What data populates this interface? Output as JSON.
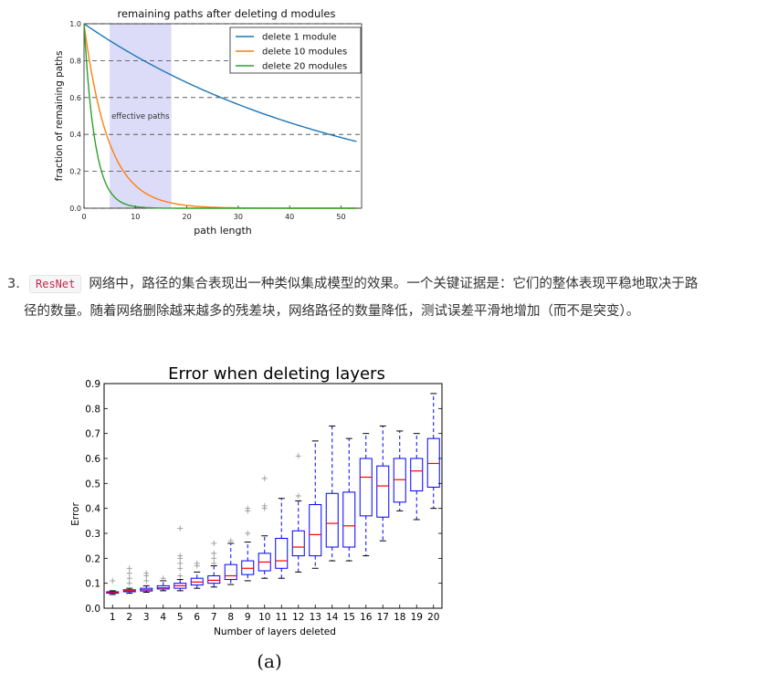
{
  "chart_data": [
    {
      "type": "line",
      "title": "remaining paths after deleting d modules",
      "xlabel": "path length",
      "ylabel": "fraction of remaining paths",
      "xlim": [
        0,
        54
      ],
      "ylim": [
        0,
        1.0
      ],
      "xticks": [
        "0",
        "10",
        "20",
        "30",
        "40",
        "50"
      ],
      "yticks": [
        "0.0",
        "0.2",
        "0.4",
        "0.6",
        "0.8",
        "1.0"
      ],
      "grid": "horizontal dashed",
      "legend_position": "top-right",
      "annotation": "effective paths",
      "shaded_region": [
        5,
        17
      ],
      "series": [
        {
          "name": "delete 1 module",
          "color": "#1f77b4",
          "decay": 0.981,
          "x_end": 53
        },
        {
          "name": "delete 10 modules",
          "color": "#ff7f0e",
          "decay": 0.811,
          "x_end": 53
        },
        {
          "name": "delete 20 modules",
          "color": "#2ca02c",
          "decay": 0.623,
          "x_end": 53
        }
      ]
    },
    {
      "type": "box",
      "title": "Error when deleting layers",
      "xlabel": "Number of layers deleted",
      "ylabel": "Error",
      "ylim": [
        0,
        0.9
      ],
      "yticks": [
        "0.0",
        "0.1",
        "0.2",
        "0.3",
        "0.4",
        "0.5",
        "0.6",
        "0.7",
        "0.8",
        "0.9"
      ],
      "categories": [
        "1",
        "2",
        "3",
        "4",
        "5",
        "6",
        "7",
        "8",
        "9",
        "10",
        "11",
        "12",
        "13",
        "14",
        "15",
        "16",
        "17",
        "18",
        "19",
        "20"
      ],
      "colors": {
        "box": "#0000ff",
        "median": "#ff0000",
        "outlier": "#999999"
      },
      "boxes": [
        {
          "min": 0.055,
          "q1": 0.06,
          "median": 0.063,
          "q3": 0.066,
          "max": 0.07,
          "outliers": [
            0.11
          ]
        },
        {
          "min": 0.06,
          "q1": 0.066,
          "median": 0.07,
          "q3": 0.074,
          "max": 0.08,
          "outliers": [
            0.1,
            0.12,
            0.14,
            0.16
          ]
        },
        {
          "min": 0.064,
          "q1": 0.069,
          "median": 0.074,
          "q3": 0.08,
          "max": 0.09,
          "outliers": [
            0.11,
            0.13,
            0.14
          ]
        },
        {
          "min": 0.07,
          "q1": 0.077,
          "median": 0.082,
          "q3": 0.09,
          "max": 0.11,
          "outliers": [
            0.12
          ]
        },
        {
          "min": 0.07,
          "q1": 0.08,
          "median": 0.09,
          "q3": 0.1,
          "max": 0.115,
          "outliers": [
            0.13,
            0.16,
            0.18,
            0.2,
            0.21,
            0.32
          ]
        },
        {
          "min": 0.08,
          "q1": 0.093,
          "median": 0.105,
          "q3": 0.12,
          "max": 0.145,
          "outliers": [
            0.17,
            0.18
          ]
        },
        {
          "min": 0.085,
          "q1": 0.1,
          "median": 0.112,
          "q3": 0.13,
          "max": 0.17,
          "outliers": [
            0.18,
            0.2,
            0.22,
            0.26
          ]
        },
        {
          "min": 0.095,
          "q1": 0.115,
          "median": 0.13,
          "q3": 0.175,
          "max": 0.26,
          "outliers": [
            0.27
          ]
        },
        {
          "min": 0.11,
          "q1": 0.135,
          "median": 0.16,
          "q3": 0.19,
          "max": 0.265,
          "outliers": [
            0.3,
            0.39,
            0.4
          ]
        },
        {
          "min": 0.12,
          "q1": 0.15,
          "median": 0.185,
          "q3": 0.22,
          "max": 0.29,
          "outliers": [
            0.4,
            0.41,
            0.52
          ]
        },
        {
          "min": 0.12,
          "q1": 0.16,
          "median": 0.19,
          "q3": 0.28,
          "max": 0.44,
          "outliers": []
        },
        {
          "min": 0.145,
          "q1": 0.21,
          "median": 0.245,
          "q3": 0.31,
          "max": 0.43,
          "outliers": [
            0.45,
            0.61
          ]
        },
        {
          "min": 0.16,
          "q1": 0.21,
          "median": 0.295,
          "q3": 0.415,
          "max": 0.67,
          "outliers": []
        },
        {
          "min": 0.19,
          "q1": 0.245,
          "median": 0.34,
          "q3": 0.46,
          "max": 0.73,
          "outliers": []
        },
        {
          "min": 0.19,
          "q1": 0.245,
          "median": 0.33,
          "q3": 0.465,
          "max": 0.68,
          "outliers": []
        },
        {
          "min": 0.21,
          "q1": 0.37,
          "median": 0.525,
          "q3": 0.6,
          "max": 0.7,
          "outliers": []
        },
        {
          "min": 0.27,
          "q1": 0.365,
          "median": 0.49,
          "q3": 0.57,
          "max": 0.73,
          "outliers": []
        },
        {
          "min": 0.39,
          "q1": 0.425,
          "median": 0.515,
          "q3": 0.6,
          "max": 0.71,
          "outliers": []
        },
        {
          "min": 0.355,
          "q1": 0.47,
          "median": 0.55,
          "q3": 0.6,
          "max": 0.7,
          "outliers": []
        },
        {
          "min": 0.4,
          "q1": 0.485,
          "median": 0.58,
          "q3": 0.68,
          "max": 0.86,
          "outliers": []
        }
      ]
    }
  ],
  "paragraph": {
    "number": "3.",
    "code": "ResNet",
    "line1": "网络中，路径的集合表现出一种类似集成模型的效果。一个关键证据是：它们的整体表现平稳地取决于路",
    "line2": "径的数量。随着网络删除越来越多的残差块，网络路径的数量降低，测试误差平滑地增加（而不是突变）。"
  },
  "caption": "(a)"
}
